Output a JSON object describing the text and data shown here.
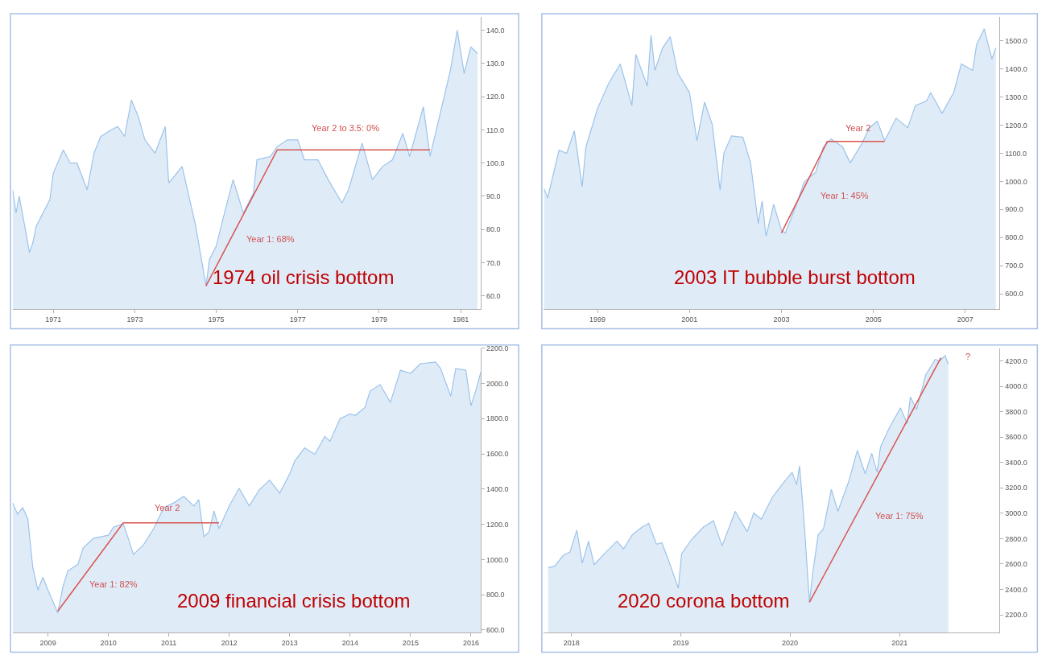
{
  "chart_data": [
    {
      "type": "area",
      "title": "1974 oil crisis bottom",
      "xlim": [
        "1970-01",
        "1981-07"
      ],
      "ylim": [
        56,
        144
      ],
      "xticks": [
        "1971",
        "1973",
        "1975",
        "1977",
        "1979",
        "1981"
      ],
      "yticks": [
        {
          "value": 60,
          "label": "60.0"
        },
        {
          "value": 70,
          "label": "70.0"
        },
        {
          "value": 80,
          "label": "80.0"
        },
        {
          "value": 90,
          "label": "90.0"
        },
        {
          "value": 100,
          "label": "100.0"
        },
        {
          "value": 110,
          "label": "110.0"
        },
        {
          "value": 120,
          "label": "120.0"
        },
        {
          "value": 130,
          "label": "130.0"
        },
        {
          "value": 140,
          "label": "140.0"
        }
      ],
      "x": [
        "1970-01",
        "1970-02",
        "1970-03",
        "1970-05",
        "1970-06",
        "1970-07",
        "1970-08",
        "1970-10",
        "1970-12",
        "1971-01",
        "1971-04",
        "1971-06",
        "1971-08",
        "1971-11",
        "1972-01",
        "1972-03",
        "1972-06",
        "1972-08",
        "1972-10",
        "1972-12",
        "1973-02",
        "1973-04",
        "1973-07",
        "1973-10",
        "1973-11",
        "1974-03",
        "1974-05",
        "1974-07",
        "1974-10",
        "1974-11",
        "1975-01",
        "1975-03",
        "1975-06",
        "1975-09",
        "1975-12",
        "1976-01",
        "1976-05",
        "1976-07",
        "1976-10",
        "1977-01",
        "1977-03",
        "1977-07",
        "1977-10",
        "1978-02",
        "1978-04",
        "1978-08",
        "1978-11",
        "1979-02",
        "1979-05",
        "1979-08",
        "1979-10",
        "1980-02",
        "1980-04",
        "1980-07",
        "1980-10",
        "1980-12",
        "1981-02",
        "1981-04",
        "1981-06"
      ],
      "series": [
        {
          "color": "#9cc3ea",
          "values": [
            92,
            85,
            90,
            79,
            73,
            76,
            81,
            85,
            89,
            97,
            104,
            100,
            100,
            92,
            103,
            108,
            110,
            111,
            108,
            119,
            114,
            107,
            103,
            111,
            94,
            99,
            90,
            81,
            63,
            71,
            75,
            83,
            95,
            85,
            91,
            101,
            102,
            105,
            107,
            107,
            101,
            101,
            95,
            88,
            92,
            106,
            95,
            99,
            101,
            109,
            102,
            117,
            102,
            115,
            128,
            140,
            127,
            135,
            133
          ]
        },
        {
          "type": "line",
          "color": "#d9534f",
          "x": [
            "1974-10",
            "1976-07",
            "1980-04"
          ],
          "values": [
            63,
            104,
            104
          ]
        }
      ],
      "annotations": [
        "Year 1: 68%",
        "Year 2 to 3.5: 0%"
      ]
    },
    {
      "type": "area",
      "title": "2003 IT bubble burst bottom",
      "xlim": [
        "1997-11",
        "2007-10"
      ],
      "ylim": [
        545,
        1585
      ],
      "xticks": [
        "1999",
        "2001",
        "2003",
        "2005",
        "2007"
      ],
      "yticks": [
        {
          "value": 600,
          "label": "600.0"
        },
        {
          "value": 700,
          "label": "700.0"
        },
        {
          "value": 800,
          "label": "800.0"
        },
        {
          "value": 900,
          "label": "900.0"
        },
        {
          "value": 1000,
          "label": "1000.0"
        },
        {
          "value": 1100,
          "label": "1100.0"
        },
        {
          "value": 1200,
          "label": "1200.0"
        },
        {
          "value": 1300,
          "label": "1300.0"
        },
        {
          "value": 1400,
          "label": "1400.0"
        },
        {
          "value": 1500,
          "label": "1500.0"
        }
      ],
      "x": [
        "1997-11",
        "1997-12",
        "1998-03",
        "1998-05",
        "1998-07",
        "1998-09",
        "1998-10",
        "1999-01",
        "1999-04",
        "1999-07",
        "1999-10",
        "1999-11",
        "2000-02",
        "2000-03",
        "2000-04",
        "2000-06",
        "2000-08",
        "2000-10",
        "2001-01",
        "2001-03",
        "2001-05",
        "2001-07",
        "2001-09",
        "2001-10",
        "2001-12",
        "2002-03",
        "2002-05",
        "2002-07",
        "2002-08",
        "2002-09",
        "2002-11",
        "2003-01",
        "2003-02",
        "2003-05",
        "2003-07",
        "2003-10",
        "2003-12",
        "2004-02",
        "2004-05",
        "2004-07",
        "2004-10",
        "2004-12",
        "2005-02",
        "2005-04",
        "2005-07",
        "2005-10",
        "2005-12",
        "2006-03",
        "2006-04",
        "2006-07",
        "2006-10",
        "2006-12",
        "2007-03",
        "2007-04",
        "2007-06",
        "2007-08",
        "2007-09"
      ],
      "series": [
        {
          "color": "#9cc3ea",
          "values": [
            975,
            941,
            1111,
            1100,
            1180,
            981,
            1123,
            1259,
            1350,
            1418,
            1270,
            1452,
            1339,
            1520,
            1395,
            1475,
            1515,
            1384,
            1316,
            1145,
            1282,
            1202,
            969,
            1100,
            1162,
            1157,
            1066,
            850,
            930,
            805,
            918,
            827,
            816,
            918,
            998,
            1032,
            1123,
            1151,
            1123,
            1066,
            1134,
            1191,
            1214,
            1145,
            1225,
            1191,
            1270,
            1287,
            1316,
            1242,
            1316,
            1418,
            1395,
            1486,
            1543,
            1435,
            1475
          ]
        },
        {
          "type": "line",
          "color": "#d9534f",
          "x": [
            "2003-01",
            "2004-01",
            "2005-04"
          ],
          "values": [
            816,
            1142,
            1142
          ]
        }
      ],
      "annotations": [
        "Year 2",
        "Year 1: 45%"
      ]
    },
    {
      "type": "area",
      "title": "2009 financial crisis bottom",
      "xlim": [
        "2008-06",
        "2016-03"
      ],
      "ylim": [
        585,
        2200
      ],
      "xticks": [
        "2009",
        "2010",
        "2011",
        "2012",
        "2013",
        "2014",
        "2015",
        "2016"
      ],
      "yticks": [
        {
          "value": 600,
          "label": "600.0"
        },
        {
          "value": 800,
          "label": "800.0"
        },
        {
          "value": 1000,
          "label": "1000.0"
        },
        {
          "value": 1200,
          "label": "1200.0"
        },
        {
          "value": 1400,
          "label": "1400.0"
        },
        {
          "value": 1600,
          "label": "1600.0"
        },
        {
          "value": 1800,
          "label": "1800.0"
        },
        {
          "value": 2000,
          "label": "2000.0"
        },
        {
          "value": 2200,
          "label": "2200.0"
        }
      ],
      "x": [
        "2008-06",
        "2008-07",
        "2008-08",
        "2008-09",
        "2008-10",
        "2008-11",
        "2008-12",
        "2009-01",
        "2009-03",
        "2009-04",
        "2009-05",
        "2009-07",
        "2009-08",
        "2009-10",
        "2010-01",
        "2010-02",
        "2010-04",
        "2010-05",
        "2010-06",
        "2010-08",
        "2010-10",
        "2010-12",
        "2011-02",
        "2011-04",
        "2011-06",
        "2011-07",
        "2011-08",
        "2011-09",
        "2011-10",
        "2011-11",
        "2012-01",
        "2012-03",
        "2012-05",
        "2012-07",
        "2012-09",
        "2012-11",
        "2013-01",
        "2013-02",
        "2013-04",
        "2013-06",
        "2013-08",
        "2013-09",
        "2013-11",
        "2014-01",
        "2014-02",
        "2014-04",
        "2014-05",
        "2014-07",
        "2014-09",
        "2014-11",
        "2015-01",
        "2015-03",
        "2015-06",
        "2015-07",
        "2015-09",
        "2015-10",
        "2015-12",
        "2016-01",
        "2016-02",
        "2016-03"
      ],
      "series": [
        {
          "color": "#9cc3ea",
          "values": [
            1322,
            1258,
            1294,
            1230,
            955,
            826,
            900,
            826,
            697,
            844,
            936,
            973,
            1065,
            1120,
            1138,
            1184,
            1203,
            1120,
            1028,
            1083,
            1175,
            1294,
            1322,
            1359,
            1304,
            1340,
            1129,
            1157,
            1276,
            1175,
            1304,
            1405,
            1304,
            1396,
            1451,
            1377,
            1487,
            1561,
            1634,
            1598,
            1699,
            1671,
            1800,
            1827,
            1818,
            1864,
            1956,
            1993,
            1892,
            2075,
            2057,
            2112,
            2121,
            2085,
            1928,
            2085,
            2075,
            1873,
            1965,
            2066
          ]
        },
        {
          "type": "line",
          "color": "#d9534f",
          "x": [
            "2009-03",
            "2010-04",
            "2011-11"
          ],
          "values": [
            707,
            1208,
            1208
          ]
        }
      ],
      "annotations": [
        "Year 2",
        "Year 1: 82%"
      ]
    },
    {
      "type": "area",
      "title": "2020 corona bottom",
      "xlim": [
        "2017-10",
        "2021-12"
      ],
      "ylim": [
        2060,
        4300
      ],
      "xticks": [
        "2018",
        "2019",
        "2020",
        "2021"
      ],
      "yticks": [
        {
          "value": 2200,
          "label": "2200.0"
        },
        {
          "value": 2400,
          "label": "2400.0"
        },
        {
          "value": 2600,
          "label": "2600.0"
        },
        {
          "value": 2800,
          "label": "2800.0"
        },
        {
          "value": 3000,
          "label": "3000.0"
        },
        {
          "value": 3200,
          "label": "3200.0"
        },
        {
          "value": 3400,
          "label": "3400.0"
        },
        {
          "value": 3600,
          "label": "3600.0"
        },
        {
          "value": 3800,
          "label": "3800.0"
        },
        {
          "value": 4000,
          "label": "4000.0"
        },
        {
          "value": 4200,
          "label": "4200.0"
        }
      ],
      "x": [
        "2017-10-15",
        "2017-11-06",
        "2017-12-05",
        "2017-12-27",
        "2018-01-19",
        "2018-02-06",
        "2018-02-27",
        "2018-03-18",
        "2018-04-16",
        "2018-06-02",
        "2018-06-24",
        "2018-07-23",
        "2018-08-25",
        "2018-09-16",
        "2018-10-12",
        "2018-10-30",
        "2018-11-21",
        "2018-12-24",
        "2019-01-04",
        "2019-02-06",
        "2019-03-18",
        "2019-04-20",
        "2019-05-19",
        "2019-07-02",
        "2019-08-11",
        "2019-09-02",
        "2019-09-27",
        "2019-11-03",
        "2019-12-13",
        "2020-01-08",
        "2020-01-23",
        "2020-02-02",
        "2020-02-16",
        "2020-03-06",
        "2020-03-17",
        "2020-04-04",
        "2020-04-22",
        "2020-05-18",
        "2020-06-09",
        "2020-07-15",
        "2020-08-13",
        "2020-09-08",
        "2020-09-30",
        "2020-10-18",
        "2020-10-29",
        "2020-11-27",
        "2021-01-04",
        "2021-01-26",
        "2021-02-06",
        "2021-02-27",
        "2021-03-29",
        "2021-04-30",
        "2021-05-15",
        "2021-06-02",
        "2021-06-13"
      ],
      "series": [
        {
          "color": "#9cc3ea",
          "values": [
            2570,
            2583,
            2669,
            2694,
            2867,
            2607,
            2780,
            2595,
            2669,
            2780,
            2719,
            2830,
            2891,
            2921,
            2756,
            2768,
            2632,
            2410,
            2681,
            2793,
            2891,
            2941,
            2743,
            3015,
            2854,
            3002,
            2953,
            3126,
            3249,
            3323,
            3225,
            3372,
            2965,
            2299,
            2533,
            2830,
            2879,
            3188,
            3015,
            3249,
            3496,
            3311,
            3472,
            3323,
            3521,
            3669,
            3830,
            3706,
            3916,
            3817,
            4089,
            4212,
            4200,
            4242,
            4175
          ]
        },
        {
          "type": "line",
          "color": "#d9534f",
          "x": [
            "2020-03-06",
            "2021-05-19"
          ],
          "values": [
            2299,
            4225
          ]
        }
      ],
      "annotations": [
        "Year 1: 75%",
        "?"
      ]
    }
  ]
}
